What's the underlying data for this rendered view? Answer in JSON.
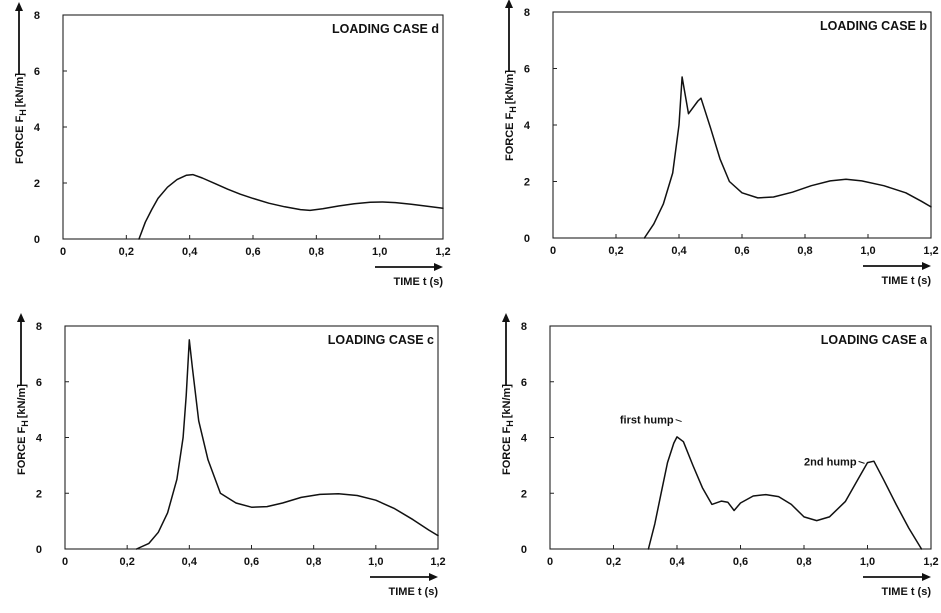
{
  "chart_data": [
    {
      "type": "line",
      "title": "LOADING CASE d",
      "xlabel": "TIME  t (s)",
      "ylabel": "FORCE  F",
      "ylabel_sub": "H",
      "ylabel_unit": "[kN/m]",
      "xlim": [
        0,
        1.2
      ],
      "ylim": [
        0,
        8
      ],
      "x_ticks": [
        "0",
        "0,2",
        "0,4",
        "0,6",
        "0,8",
        "1,0",
        "1,2"
      ],
      "y_ticks": [
        "0",
        "2",
        "4",
        "6",
        "8"
      ],
      "series": [
        {
          "points": [
            [
              0.24,
              0.0
            ],
            [
              0.26,
              0.6
            ],
            [
              0.28,
              1.05
            ],
            [
              0.3,
              1.45
            ],
            [
              0.33,
              1.85
            ],
            [
              0.36,
              2.12
            ],
            [
              0.39,
              2.28
            ],
            [
              0.41,
              2.3
            ],
            [
              0.44,
              2.18
            ],
            [
              0.48,
              1.98
            ],
            [
              0.52,
              1.78
            ],
            [
              0.56,
              1.6
            ],
            [
              0.6,
              1.45
            ],
            [
              0.65,
              1.28
            ],
            [
              0.7,
              1.15
            ],
            [
              0.75,
              1.05
            ],
            [
              0.78,
              1.02
            ],
            [
              0.82,
              1.08
            ],
            [
              0.87,
              1.18
            ],
            [
              0.92,
              1.26
            ],
            [
              0.97,
              1.31
            ],
            [
              1.01,
              1.32
            ],
            [
              1.05,
              1.3
            ],
            [
              1.1,
              1.24
            ],
            [
              1.15,
              1.17
            ],
            [
              1.2,
              1.1
            ]
          ]
        }
      ]
    },
    {
      "type": "line",
      "title": "LOADING CASE b",
      "xlabel": "TIME  t (s)",
      "ylabel": "FORCE  F",
      "ylabel_sub": "H",
      "ylabel_unit": "[kN/m]",
      "xlim": [
        0,
        1.2
      ],
      "ylim": [
        0,
        8
      ],
      "x_ticks": [
        "0",
        "0,2",
        "0,4",
        "0,6",
        "0,8",
        "1,0",
        "1,2"
      ],
      "y_ticks": [
        "0",
        "2",
        "4",
        "6",
        "8"
      ],
      "series": [
        {
          "points": [
            [
              0.29,
              0.0
            ],
            [
              0.32,
              0.5
            ],
            [
              0.35,
              1.2
            ],
            [
              0.38,
              2.3
            ],
            [
              0.4,
              4.0
            ],
            [
              0.41,
              5.7
            ],
            [
              0.43,
              4.4
            ],
            [
              0.46,
              4.85
            ],
            [
              0.47,
              4.95
            ],
            [
              0.5,
              3.9
            ],
            [
              0.53,
              2.8
            ],
            [
              0.56,
              2.0
            ],
            [
              0.6,
              1.6
            ],
            [
              0.65,
              1.42
            ],
            [
              0.7,
              1.45
            ],
            [
              0.76,
              1.62
            ],
            [
              0.82,
              1.85
            ],
            [
              0.88,
              2.02
            ],
            [
              0.93,
              2.08
            ],
            [
              0.98,
              2.02
            ],
            [
              1.05,
              1.85
            ],
            [
              1.12,
              1.6
            ],
            [
              1.17,
              1.3
            ],
            [
              1.2,
              1.1
            ]
          ]
        }
      ]
    },
    {
      "type": "line",
      "title": "LOADING CASE c",
      "xlabel": "TIME  t (s)",
      "ylabel": "FORCE  F",
      "ylabel_sub": "H",
      "ylabel_unit": "[kN/m]",
      "xlim": [
        0,
        1.2
      ],
      "ylim": [
        0,
        8
      ],
      "x_ticks": [
        "0",
        "0,2",
        "0,4",
        "0,6",
        "0,8",
        "1,0",
        "1,2"
      ],
      "y_ticks": [
        "0",
        "2",
        "4",
        "6",
        "8"
      ],
      "series": [
        {
          "points": [
            [
              0.23,
              0.0
            ],
            [
              0.27,
              0.2
            ],
            [
              0.3,
              0.6
            ],
            [
              0.33,
              1.3
            ],
            [
              0.36,
              2.5
            ],
            [
              0.38,
              4.0
            ],
            [
              0.39,
              5.5
            ],
            [
              0.4,
              7.5
            ],
            [
              0.41,
              6.5
            ],
            [
              0.43,
              4.6
            ],
            [
              0.46,
              3.2
            ],
            [
              0.5,
              2.0
            ],
            [
              0.55,
              1.65
            ],
            [
              0.6,
              1.5
            ],
            [
              0.65,
              1.52
            ],
            [
              0.7,
              1.65
            ],
            [
              0.76,
              1.85
            ],
            [
              0.82,
              1.96
            ],
            [
              0.88,
              1.98
            ],
            [
              0.94,
              1.92
            ],
            [
              1.0,
              1.75
            ],
            [
              1.06,
              1.45
            ],
            [
              1.12,
              1.05
            ],
            [
              1.17,
              0.68
            ],
            [
              1.2,
              0.48
            ]
          ]
        }
      ]
    },
    {
      "type": "line",
      "title": "LOADING CASE a",
      "xlabel": "TIME  t (s)",
      "ylabel": "FORCE  F",
      "ylabel_sub": "H",
      "ylabel_unit": "[kN/m]",
      "xlim": [
        0,
        1.2
      ],
      "ylim": [
        0,
        8
      ],
      "x_ticks": [
        "0",
        "0,2",
        "0,4",
        "0,6",
        "0,8",
        "1,0",
        "1,2"
      ],
      "y_ticks": [
        "0",
        "2",
        "4",
        "6",
        "8"
      ],
      "annotations": [
        {
          "text": "first hump",
          "x": 0.4,
          "y": 4.0,
          "label_x": 0.22,
          "label_y": 4.5
        },
        {
          "text": "2nd hump",
          "x": 1.01,
          "y": 3.15,
          "label_x": 0.8,
          "label_y": 3.0
        }
      ],
      "series": [
        {
          "points": [
            [
              0.31,
              0.0
            ],
            [
              0.33,
              0.9
            ],
            [
              0.35,
              2.0
            ],
            [
              0.37,
              3.1
            ],
            [
              0.39,
              3.8
            ],
            [
              0.4,
              4.02
            ],
            [
              0.42,
              3.85
            ],
            [
              0.45,
              3.0
            ],
            [
              0.48,
              2.2
            ],
            [
              0.51,
              1.6
            ],
            [
              0.54,
              1.72
            ],
            [
              0.56,
              1.68
            ],
            [
              0.58,
              1.38
            ],
            [
              0.6,
              1.65
            ],
            [
              0.64,
              1.9
            ],
            [
              0.68,
              1.95
            ],
            [
              0.72,
              1.88
            ],
            [
              0.76,
              1.6
            ],
            [
              0.8,
              1.15
            ],
            [
              0.84,
              1.02
            ],
            [
              0.88,
              1.15
            ],
            [
              0.93,
              1.7
            ],
            [
              0.97,
              2.5
            ],
            [
              1.0,
              3.1
            ],
            [
              1.02,
              3.15
            ],
            [
              1.05,
              2.5
            ],
            [
              1.09,
              1.6
            ],
            [
              1.13,
              0.75
            ],
            [
              1.17,
              0.0
            ]
          ]
        }
      ]
    }
  ]
}
